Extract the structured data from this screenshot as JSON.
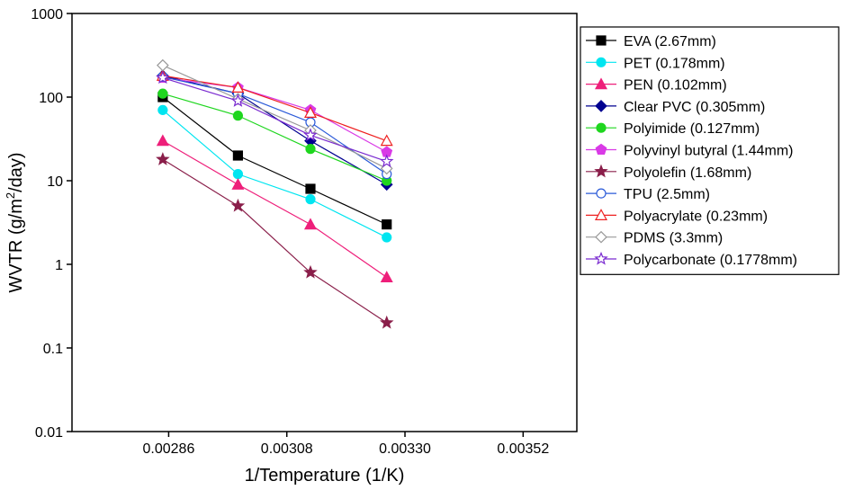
{
  "chart_data": {
    "type": "line",
    "title": "",
    "xlabel": "1/Temperature (1/K)",
    "ylabel_parts": {
      "pre": "WVTR (g/m",
      "sup": "2",
      "post": "/day)"
    },
    "yscale": "log",
    "xlim": [
      0.00268,
      0.00362
    ],
    "ylim": [
      0.01,
      1000
    ],
    "x_ticks": [
      0.00286,
      0.00308,
      0.0033,
      0.00352
    ],
    "x_tick_labels": [
      "0.00286",
      "0.00308",
      "0.00330",
      "0.00352"
    ],
    "y_ticks": [
      0.01,
      0.1,
      1,
      10,
      100,
      1000
    ],
    "y_tick_labels": [
      "0.01",
      "0.1",
      "1",
      "10",
      "100",
      "1000"
    ],
    "grid": false,
    "legend_position": "right",
    "x": [
      0.002849,
      0.002989,
      0.003124,
      0.003266
    ],
    "series": [
      {
        "name": "EVA (2.67mm)",
        "color": "#000000",
        "marker": "square",
        "filled": true,
        "values": [
          100,
          20,
          8,
          3
        ]
      },
      {
        "name": "PET (0.178mm)",
        "color": "#00e5f0",
        "marker": "circle",
        "filled": true,
        "values": [
          70,
          12,
          6,
          2.1
        ]
      },
      {
        "name": "PEN (0.102mm)",
        "color": "#ee1f7a",
        "marker": "triangle",
        "filled": true,
        "values": [
          30,
          9,
          3,
          0.7
        ]
      },
      {
        "name": "Clear PVC (0.305mm)",
        "color": "#000090",
        "marker": "diamond",
        "filled": true,
        "values": [
          180,
          110,
          30,
          9
        ]
      },
      {
        "name": "Polyimide (0.127mm)",
        "color": "#1fd61f",
        "marker": "circle",
        "filled": true,
        "values": [
          110,
          60,
          24,
          10
        ]
      },
      {
        "name": "Polyvinyl butyral (1.44mm)",
        "color": "#d93ae6",
        "marker": "pentagon",
        "filled": true,
        "values": [
          170,
          130,
          70,
          22
        ]
      },
      {
        "name": "Polyolefin (1.68mm)",
        "color": "#8a1f4a",
        "marker": "star",
        "filled": true,
        "values": [
          18,
          5,
          0.8,
          0.2
        ]
      },
      {
        "name": "TPU (2.5mm)",
        "color": "#2a5ad8",
        "marker": "circle",
        "filled": false,
        "values": [
          175,
          110,
          50,
          12
        ]
      },
      {
        "name": "Polyacrylate (0.23mm)",
        "color": "#ee2020",
        "marker": "triangle",
        "filled": false,
        "values": [
          180,
          130,
          65,
          30
        ]
      },
      {
        "name": "PDMS (3.3mm)",
        "color": "#999999",
        "marker": "diamond",
        "filled": false,
        "values": [
          240,
          95,
          40,
          14
        ]
      },
      {
        "name": "Polycarbonate (0.1778mm)",
        "color": "#7a2ad0",
        "marker": "star",
        "filled": false,
        "values": [
          170,
          90,
          35,
          17
        ]
      }
    ]
  }
}
